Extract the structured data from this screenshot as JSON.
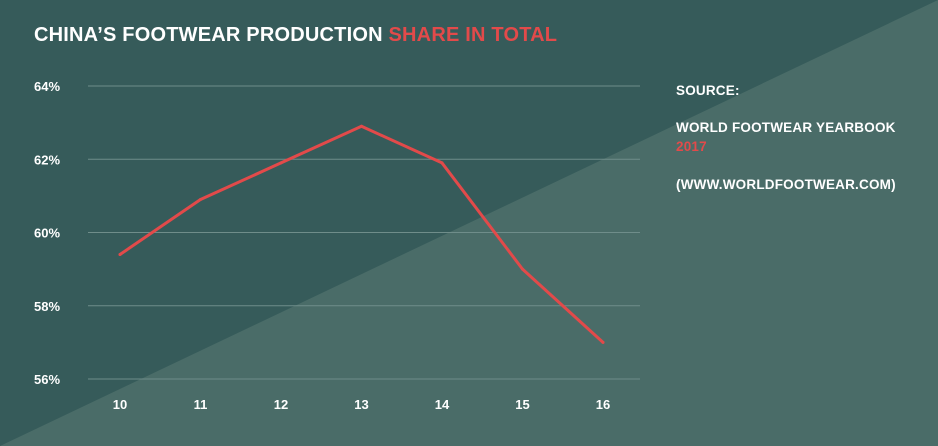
{
  "title": {
    "main": "CHINA’S FOOTWEAR PRODUCTION",
    "accent": "SHARE IN TOTAL"
  },
  "source": {
    "heading": "SOURCE:",
    "line1": "WORLD FOOTWEAR YEARBOOK",
    "line2": "2017",
    "line3": "(WWW.WORLDFOOTWEAR.COM)"
  },
  "colors": {
    "background_dark": "#365b5a",
    "background_light": "#4a6c68",
    "line": "#e24a4a",
    "text": "#ffffff",
    "accent": "#e24a4a",
    "grid": "#6f8d8a"
  },
  "chart_data": {
    "type": "line",
    "title": "CHINA’S FOOTWEAR PRODUCTION SHARE IN TOTAL",
    "xlabel": "",
    "ylabel": "",
    "categories": [
      "10",
      "11",
      "12",
      "13",
      "14",
      "15",
      "16"
    ],
    "series": [
      {
        "values": [
          59.4,
          60.9,
          61.9,
          62.9,
          61.9,
          59.0,
          57.0
        ]
      }
    ],
    "ylim": [
      56,
      64
    ],
    "yticks": [
      56,
      58,
      60,
      62,
      64
    ],
    "ytick_labels": [
      "56%",
      "58%",
      "60%",
      "62%",
      "64%"
    ],
    "grid": true,
    "legend": "none"
  }
}
